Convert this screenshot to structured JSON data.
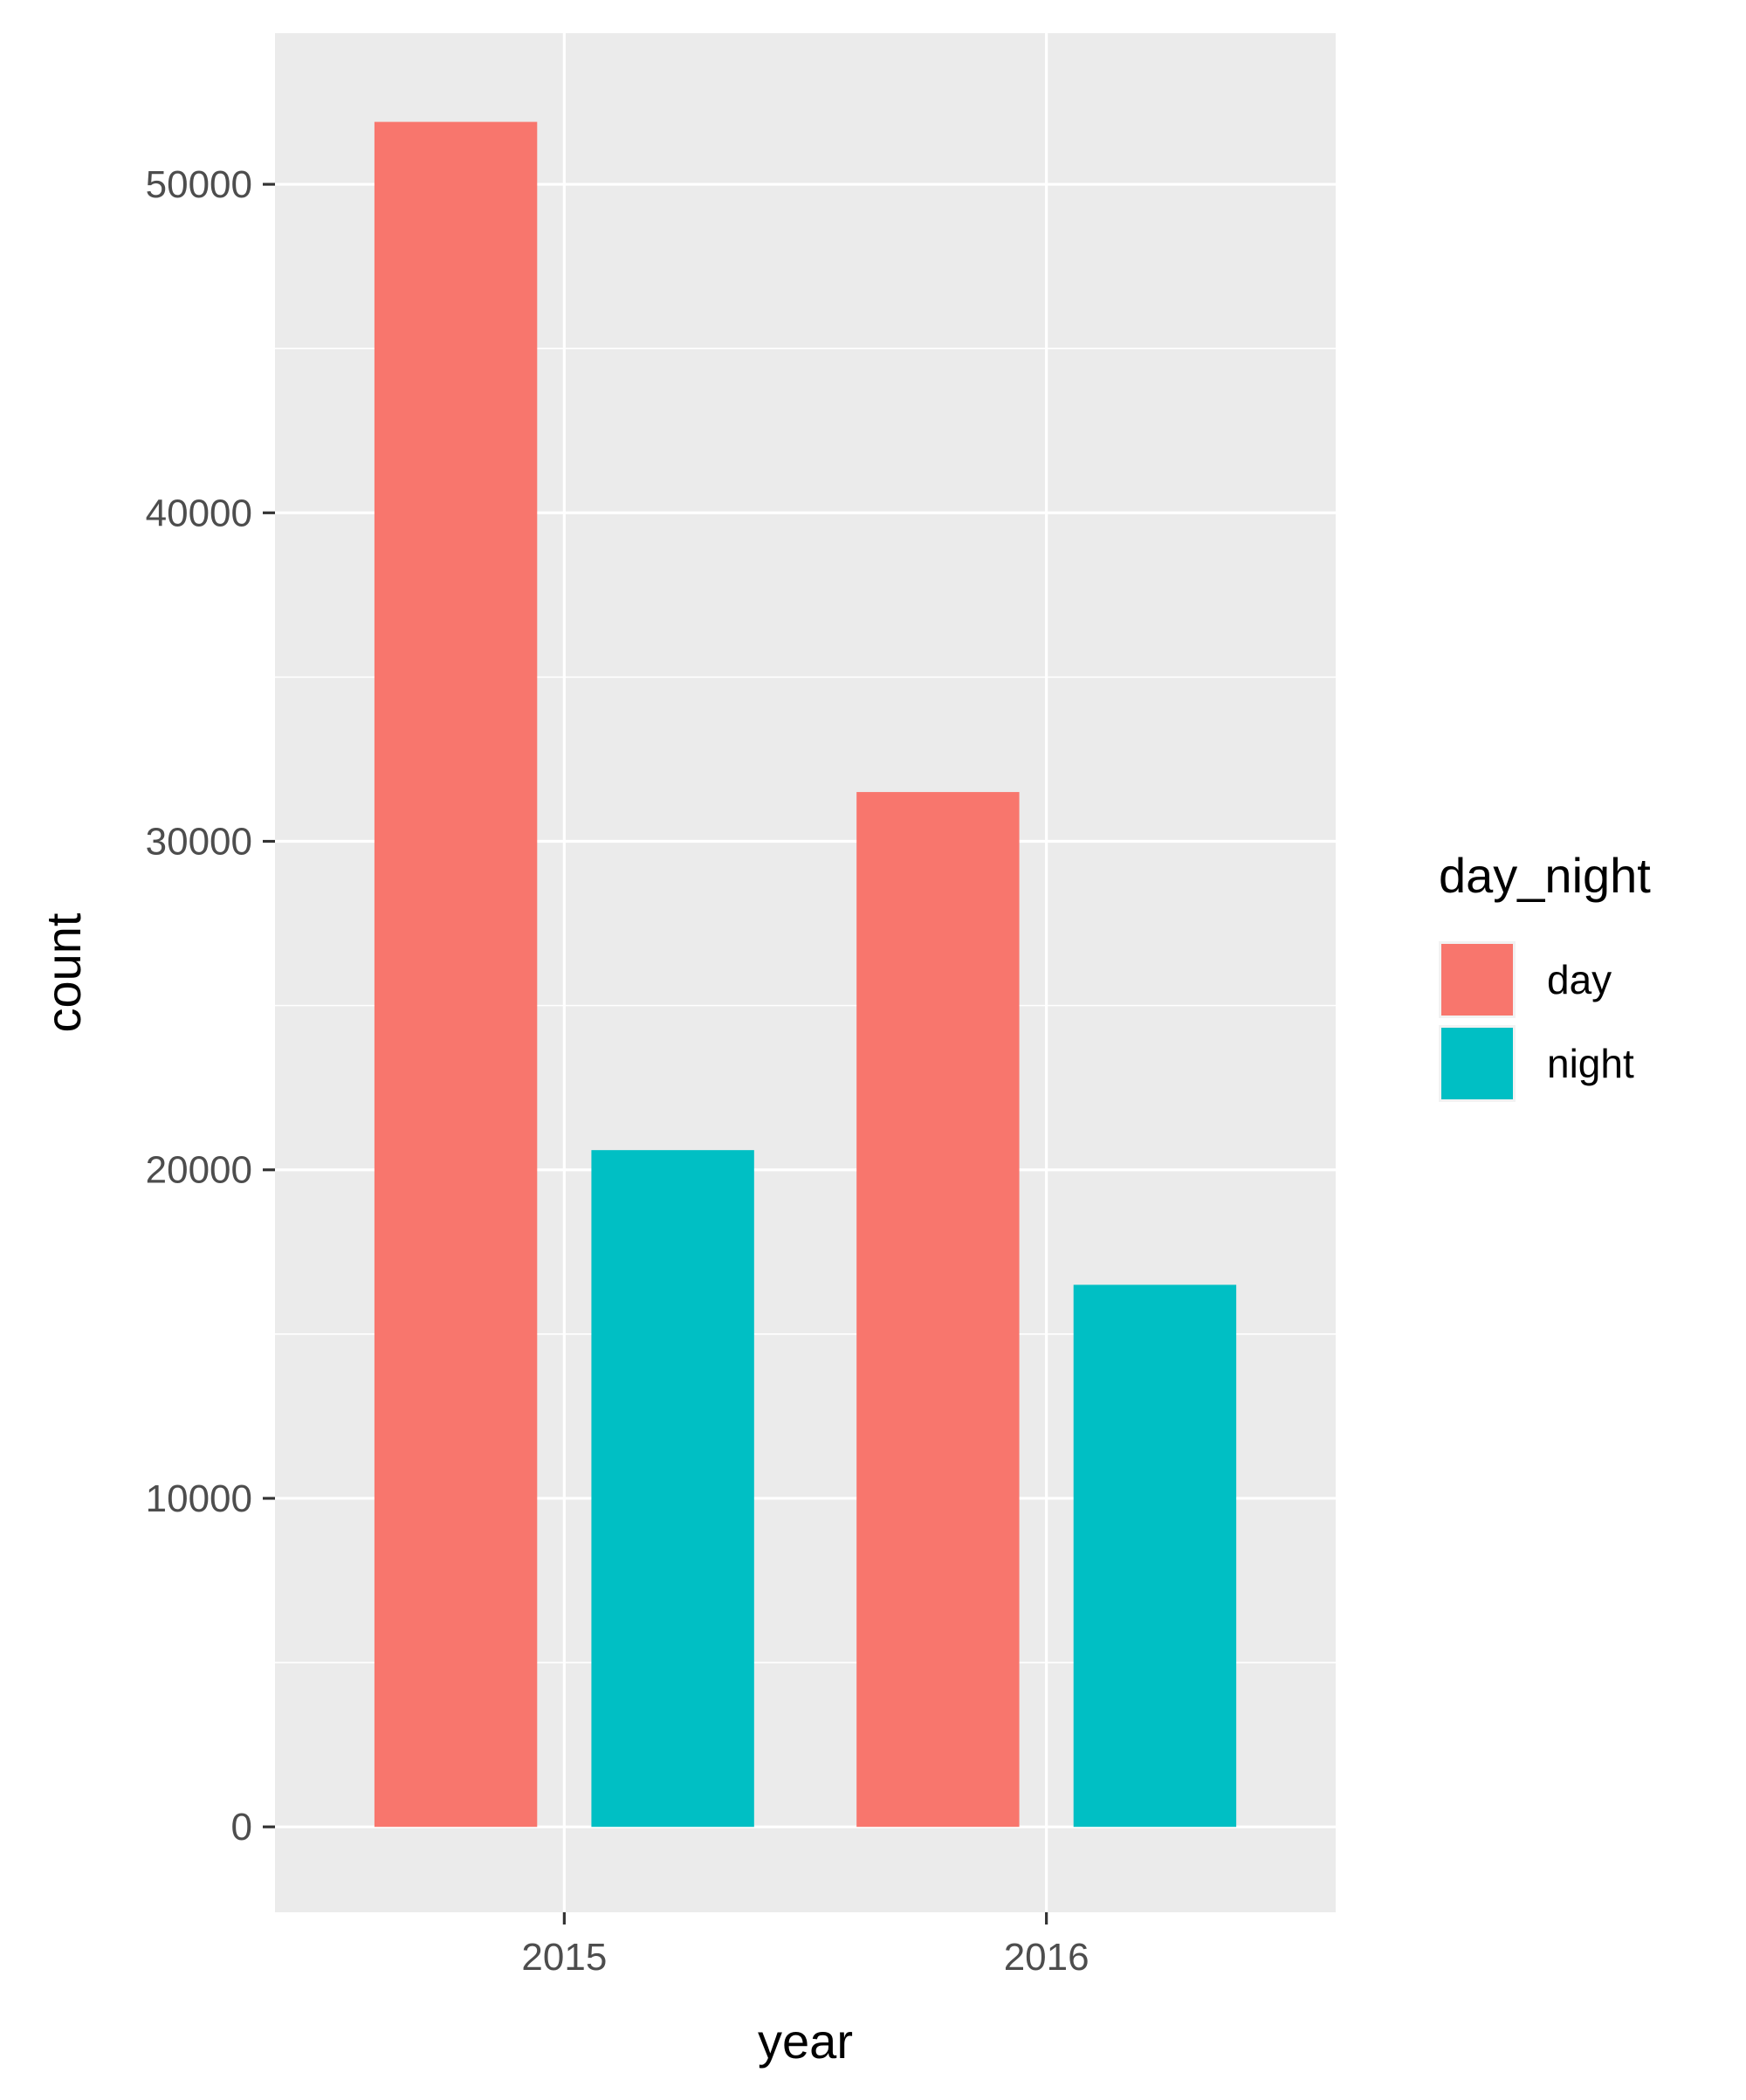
{
  "chart_data": {
    "type": "bar",
    "title": "",
    "xlabel": "year",
    "ylabel": "count",
    "categories": [
      "2015",
      "2016"
    ],
    "series": [
      {
        "name": "day",
        "color": "#F8766D",
        "values": [
          51900,
          31500
        ]
      },
      {
        "name": "night",
        "color": "#00BFC4",
        "values": [
          20600,
          16500
        ]
      }
    ],
    "ylim": [
      -2600,
      54600
    ],
    "y_ticks": [
      0,
      10000,
      20000,
      30000,
      40000,
      50000
    ],
    "y_tick_labels": [
      "0",
      "10000",
      "20000",
      "30000",
      "40000",
      "50000"
    ],
    "grid": true,
    "panel_background": "#EBEBEB",
    "grid_color": "#FFFFFF",
    "legend": {
      "title": "day_night",
      "placement": "right"
    }
  }
}
